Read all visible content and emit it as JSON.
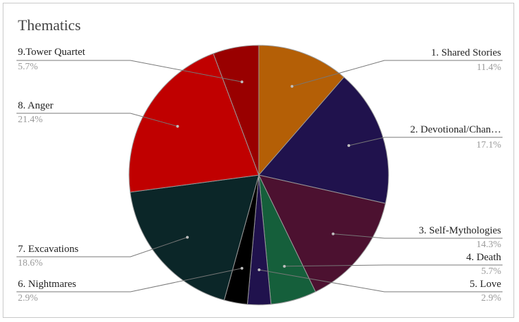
{
  "chart_data": {
    "type": "pie",
    "title": "Thematics",
    "slices": [
      {
        "label": "1. Shared Stories",
        "value": 11.4,
        "pct_label": "11.4%",
        "color": "#b45f06"
      },
      {
        "label": "2. Devotional/Chan…",
        "value": 17.1,
        "pct_label": "17.1%",
        "color": "#20124d"
      },
      {
        "label": "3. Self-Mythologies",
        "value": 14.3,
        "pct_label": "14.3%",
        "color": "#4c1130"
      },
      {
        "label": "4. Death",
        "value": 5.7,
        "pct_label": "5.7%",
        "color": "#155f3b"
      },
      {
        "label": "5. Love",
        "value": 2.9,
        "pct_label": "2.9%",
        "color": "#20124d"
      },
      {
        "label": "6. Nightmares",
        "value": 2.9,
        "pct_label": "2.9%",
        "color": "#000000"
      },
      {
        "label": "7. Excavations",
        "value": 18.6,
        "pct_label": "18.6%",
        "color": "#0b2628"
      },
      {
        "label": "8. Anger",
        "value": 21.4,
        "pct_label": "21.4%",
        "color": "#c00000"
      },
      {
        "label": "9.Tower Quartet",
        "value": 5.7,
        "pct_label": "5.7%",
        "color": "#990000"
      }
    ],
    "legend": "none",
    "label_style": "leader-lines"
  }
}
